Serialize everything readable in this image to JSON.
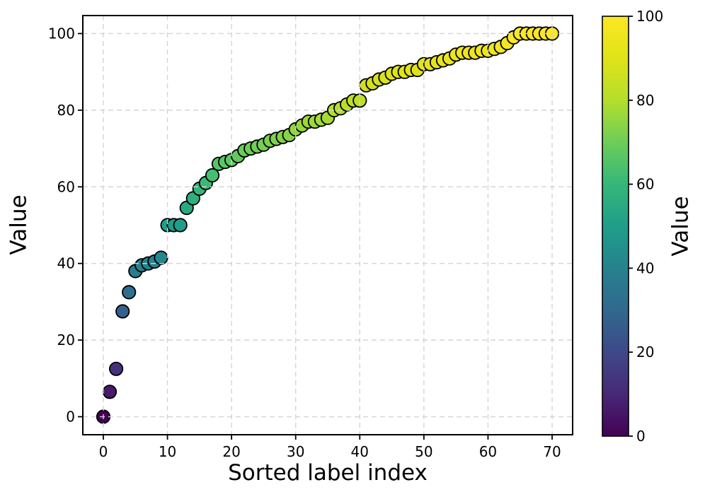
{
  "chart_data": {
    "type": "scatter",
    "xlabel": "Sorted label index",
    "ylabel": "Value",
    "x": [
      0,
      1,
      2,
      3,
      4,
      5,
      6,
      7,
      8,
      9,
      10,
      11,
      12,
      13,
      14,
      15,
      16,
      17,
      18,
      19,
      20,
      21,
      22,
      23,
      24,
      25,
      26,
      27,
      28,
      29,
      30,
      31,
      32,
      33,
      34,
      35,
      36,
      37,
      38,
      39,
      40,
      41,
      42,
      43,
      44,
      45,
      46,
      47,
      48,
      49,
      50,
      51,
      52,
      53,
      54,
      55,
      56,
      57,
      58,
      59,
      60,
      61,
      62,
      63,
      64,
      65,
      66,
      67,
      68,
      69,
      70
    ],
    "values": [
      0,
      6.5,
      12.5,
      27.5,
      32.5,
      38,
      39.5,
      40,
      40.5,
      41.5,
      50,
      50,
      50,
      54.5,
      57,
      59.5,
      61,
      63,
      66,
      66.5,
      67,
      68,
      69.5,
      70,
      70.5,
      71,
      72,
      72.5,
      73,
      73.5,
      75,
      76,
      77,
      77,
      77.5,
      78,
      80,
      80.5,
      81.5,
      82.5,
      82.5,
      86.5,
      87,
      88,
      88.5,
      89.5,
      90,
      90,
      90.5,
      90.5,
      92,
      92,
      92.5,
      93,
      93.5,
      94.5,
      95,
      95,
      95,
      95.5,
      95.5,
      96,
      96.5,
      97.5,
      99,
      100,
      100,
      100,
      100,
      100,
      100
    ],
    "xlim": [
      -3.2,
      73.2
    ],
    "ylim": [
      -4.7,
      104.7
    ],
    "xticks": [
      0,
      10,
      20,
      30,
      40,
      50,
      60,
      70
    ],
    "yticks": [
      0,
      20,
      40,
      60,
      80,
      100
    ],
    "grid": {
      "visible": true,
      "style": "dashed",
      "color": "#d4d4d4"
    },
    "legend": null,
    "colormap": "viridis",
    "colormap_stops": [
      "#440154",
      "#482878",
      "#3e4989",
      "#31688e",
      "#26828e",
      "#1f9e89",
      "#35b779",
      "#6dcd59",
      "#b4de2c",
      "#dfe318",
      "#fde725"
    ],
    "colorbar": {
      "label": "Value",
      "min": 0,
      "max": 100,
      "ticks": [
        0,
        20,
        40,
        60,
        80,
        100
      ]
    },
    "marker": {
      "radius_px": 9.2,
      "edge_color": "#000000",
      "edge_width": 1.8
    },
    "spine_color": "#000000",
    "background": "#ffffff"
  }
}
